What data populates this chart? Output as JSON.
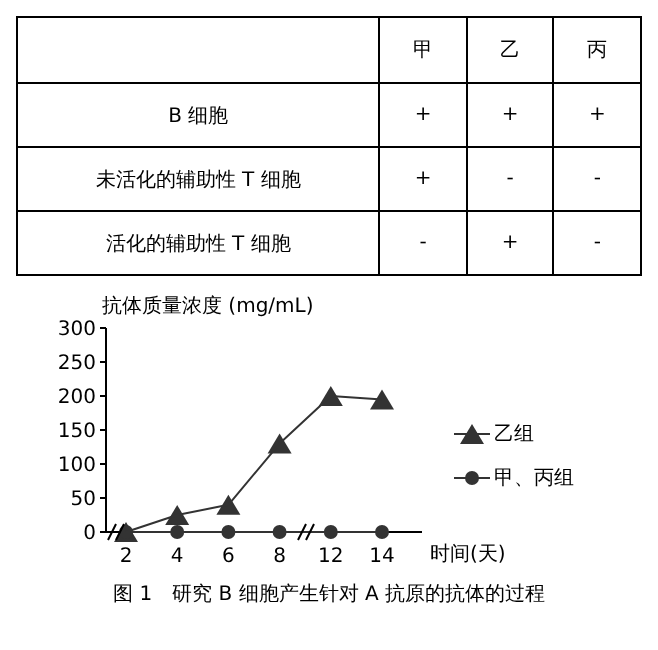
{
  "chart_data": [
    {
      "type": "other",
      "categories": [
        null,
        "甲",
        "乙",
        "丙"
      ],
      "y_categories": [
        "B 细胞",
        "未活化的辅助性 T 细胞",
        "活化的辅助性 T 细胞"
      ],
      "cell_labels": [
        [
          "+",
          "+",
          "+"
        ],
        [
          "+",
          "-",
          "-"
        ],
        [
          "-",
          "+",
          "-"
        ]
      ]
    },
    {
      "type": "line",
      "categories": [
        "2",
        "4",
        "6",
        "8",
        "12",
        "14"
      ],
      "ylabel": "抗体质量浓度 (mg/mL)",
      "xlabel": "时间(天)",
      "ylim": [
        0,
        300
      ],
      "yticks": [
        0,
        50,
        100,
        150,
        200,
        250,
        300
      ],
      "legend": "right",
      "grid": false,
      "series": [
        {
          "name": "乙组",
          "color": "#333333",
          "marker": "triangle",
          "values": [
            0,
            25,
            40,
            130,
            200,
            195
          ]
        },
        {
          "name": "甲、丙组",
          "color": "#333333",
          "marker": "circle",
          "values": [
            0,
            0,
            0,
            0,
            0,
            0
          ]
        }
      ],
      "annotations": [
        "图 1　研究 B 细胞产生针对 A 抗原的抗体的过程"
      ]
    }
  ]
}
